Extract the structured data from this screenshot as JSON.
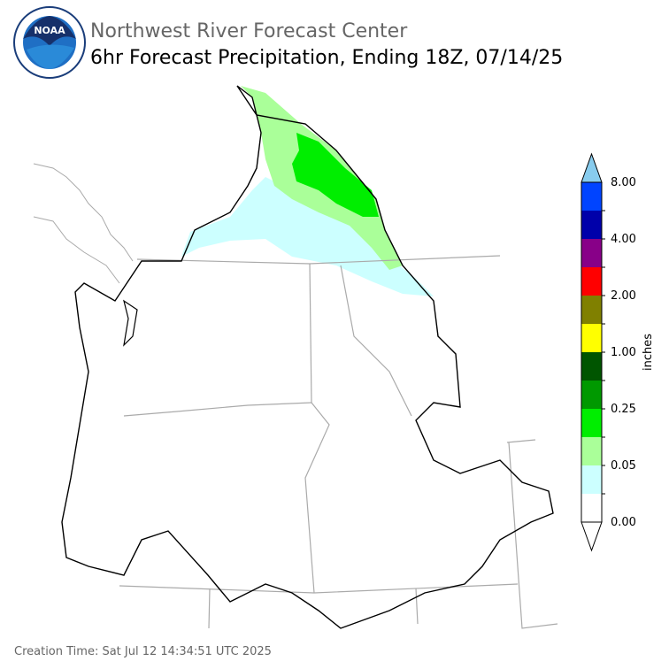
{
  "header": {
    "title": "Northwest River Forecast Center",
    "subtitle": "6hr Forecast Precipitation, Ending 18Z, 07/14/25",
    "logo_text": "NOAA"
  },
  "legend": {
    "unit": "inches",
    "labels": [
      "0.00",
      "0.05",
      "0.25",
      "1.00",
      "2.00",
      "4.00",
      "8.00"
    ],
    "colors": [
      "#ffffff",
      "#ccffff",
      "#aaff99",
      "#00ee00",
      "#009900",
      "#005500",
      "#ffff00",
      "#808000",
      "#ff0000",
      "#880088",
      "#0000aa",
      "#0044ff"
    ],
    "over_color": "#88ccee",
    "under_color": "#ffffff"
  },
  "footer": {
    "creation_time": "Creation Time: Sat Jul 12 14:34:51 UTC 2025"
  }
}
